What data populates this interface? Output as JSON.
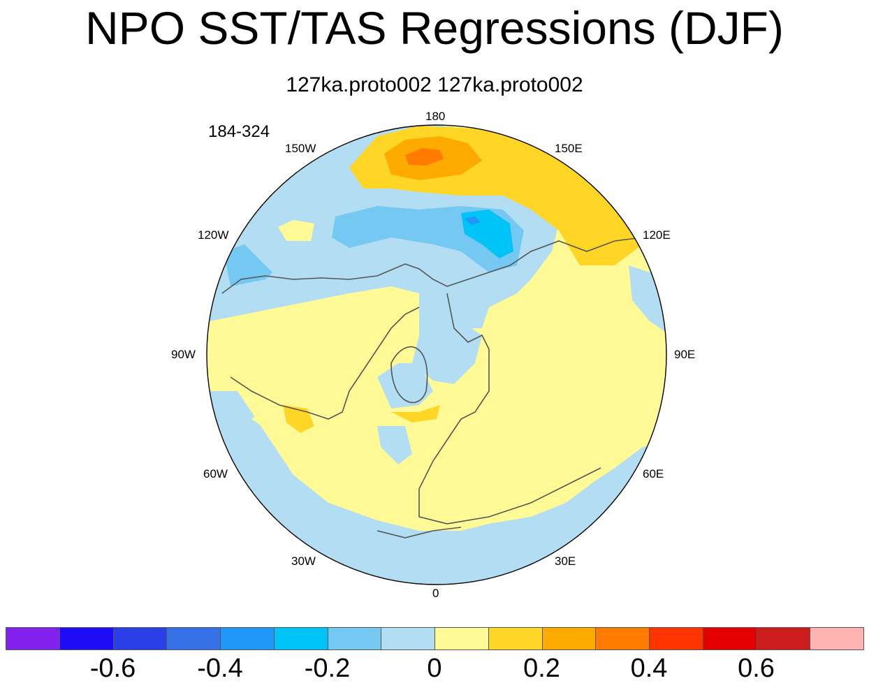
{
  "title": "NPO SST/TAS Regressions (DJF)",
  "subtitle": "127ka.proto002  127ka.proto002",
  "years_label": "184-324",
  "longitude_labels": {
    "lon_180": "180",
    "lon_150e": "150E",
    "lon_120e": "120E",
    "lon_90e": "90E",
    "lon_60e": "60E",
    "lon_30e": "30E",
    "lon_0": "0",
    "lon_30w": "30W",
    "lon_60w": "60W",
    "lon_90w": "90W",
    "lon_120w": "120W",
    "lon_150w": "150W"
  },
  "colorbar": {
    "colors": [
      "#8220ee",
      "#1d0cf5",
      "#2b3fe6",
      "#3570e6",
      "#1f97f8",
      "#00c4f5",
      "#74c8f2",
      "#b3ddf2",
      "#fffa96",
      "#ffd625",
      "#ffaa00",
      "#ff7c00",
      "#ff3500",
      "#e50000",
      "#cc1c1c",
      "#ffb4b4"
    ],
    "tick_labels": [
      "-0.6",
      "-0.4",
      "-0.2",
      "0",
      "0.2",
      "0.4",
      "0.6"
    ]
  },
  "chart_data": {
    "type": "polar-stereographic contour map",
    "title": "NPO SST/TAS Regressions (DJF)",
    "subtitle": "127ka.proto002  127ka.proto002",
    "period": "184-324",
    "season": "DJF",
    "levels": [
      -0.7,
      -0.6,
      -0.5,
      -0.4,
      -0.3,
      -0.2,
      -0.1,
      0,
      0.1,
      0.2,
      0.3,
      0.4,
      0.5,
      0.6,
      0.7
    ],
    "features": [
      {
        "region": "North Pacific (Aleutian/Kamchatka)",
        "value": 0.3
      },
      {
        "region": "Central North Pacific",
        "value": -0.2
      },
      {
        "region": "Sea of Okhotsk",
        "value": -0.3
      },
      {
        "region": "Eurasia",
        "value": 0.05
      },
      {
        "region": "North America",
        "value": 0.05
      },
      {
        "region": "Subtropical North Atlantic",
        "value": -0.05
      },
      {
        "region": "Labrador Sea / Hudson Bay",
        "value": 0.15
      }
    ]
  }
}
